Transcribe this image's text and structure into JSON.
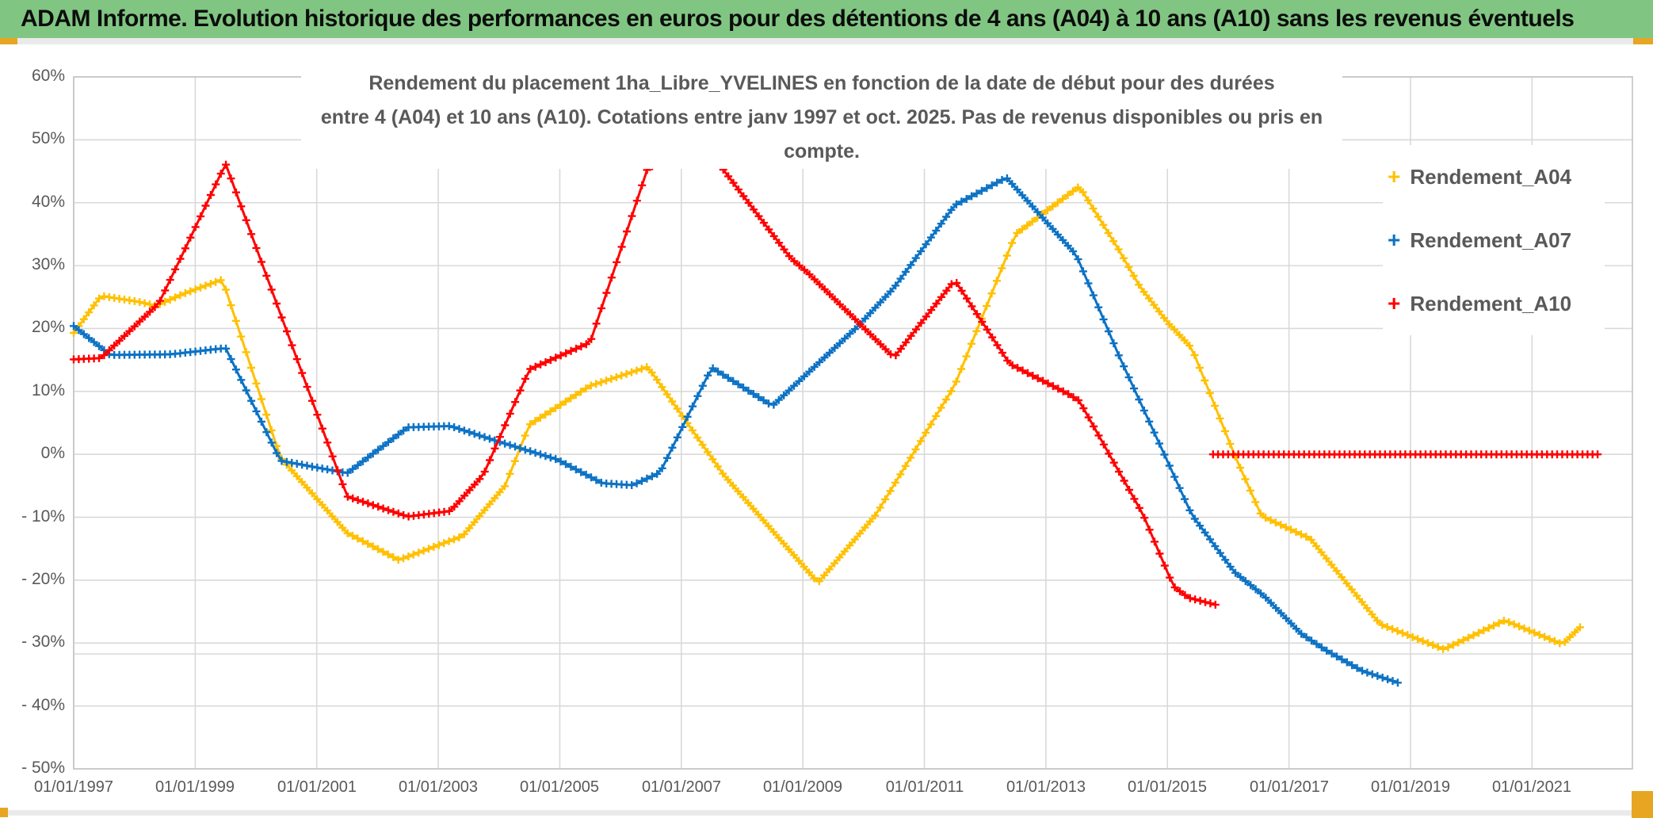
{
  "banner": {
    "title": "ADAM Informe. Evolution historique des performances en euros pour des détentions de 4 ans (A04) à 10 ans (A10) sans les revenus éventuels",
    "bg_color": "#80C682",
    "accent_color": "#E6A622"
  },
  "chart_data": {
    "type": "line",
    "title_line1": "Rendement du placement 1ha_Libre_YVELINES en fonction de la date de début pour des durées",
    "title_line2": "entre 4 (A04) et 10 ans (A10). Cotations entre janv 1997 et oct. 2025. Pas de revenus disponibles ou pris en compte.",
    "marker_style": "plus",
    "grid": "on",
    "x_axis": {
      "type": "date",
      "tick_labels": [
        "01/01/1997",
        "01/01/1999",
        "01/01/2001",
        "01/01/2003",
        "01/01/2005",
        "01/01/2007",
        "01/01/2009",
        "01/01/2011",
        "01/01/2013",
        "01/01/2015",
        "01/01/2017",
        "01/01/2019",
        "01/01/2021"
      ],
      "tick_years": [
        1997,
        1999,
        2001,
        2003,
        2005,
        2007,
        2009,
        2011,
        2013,
        2015,
        2017,
        2019,
        2021
      ]
    },
    "y_axis": {
      "unit": "%",
      "min": -50,
      "max": 60,
      "step": 10,
      "tick_labels": [
        "60%",
        "50%",
        "40%",
        "30%",
        "20%",
        "10%",
        "0%",
        "- 10%",
        "- 20%",
        "- 30%",
        "- 40%",
        "- 50%"
      ]
    },
    "legend": {
      "position": "right",
      "items": [
        {
          "label": "Rendement_A04",
          "color": "#FFC000"
        },
        {
          "label": "Rendement_A07",
          "color": "#0C72C4"
        },
        {
          "label": "Rendement_A10",
          "color": "#FF0000"
        }
      ]
    },
    "series": [
      {
        "name": "Rendement_A04",
        "color": "#FFC000",
        "points": [
          [
            1997.0,
            19.3
          ],
          [
            1997.45,
            25.2
          ],
          [
            1998.1,
            24.2
          ],
          [
            1998.35,
            23.6
          ],
          [
            1998.8,
            25.5
          ],
          [
            1999.45,
            27.8
          ],
          [
            2000.4,
            -0.5
          ],
          [
            2001.5,
            -12.5
          ],
          [
            2002.35,
            -16.8
          ],
          [
            2003.4,
            -13.0
          ],
          [
            2004.1,
            -5.0
          ],
          [
            2004.5,
            4.7
          ],
          [
            2005.5,
            10.9
          ],
          [
            2006.45,
            13.9
          ],
          [
            2007.7,
            -3.3
          ],
          [
            2009.25,
            -20.4
          ],
          [
            2010.2,
            -9.6
          ],
          [
            2011.5,
            11.0
          ],
          [
            2012.5,
            35.0
          ],
          [
            2013.55,
            42.6
          ],
          [
            2014.2,
            32.5
          ],
          [
            2014.55,
            26.6
          ],
          [
            2015.0,
            21.0
          ],
          [
            2015.4,
            16.9
          ],
          [
            2016.1,
            0.0
          ],
          [
            2016.55,
            -9.8
          ],
          [
            2017.35,
            -13.4
          ],
          [
            2018.5,
            -27.0
          ],
          [
            2019.55,
            -31.0
          ],
          [
            2020.55,
            -26.4
          ],
          [
            2021.5,
            -30.2
          ],
          [
            2021.79,
            -27.5
          ]
        ]
      },
      {
        "name": "Rendement_A07",
        "color": "#0C72C4",
        "points": [
          [
            1997.0,
            20.4
          ],
          [
            1997.6,
            15.8
          ],
          [
            1998.6,
            15.9
          ],
          [
            1999.5,
            16.9
          ],
          [
            2000.4,
            -1.0
          ],
          [
            2001.5,
            -3.0
          ],
          [
            2002.5,
            4.3
          ],
          [
            2003.2,
            4.5
          ],
          [
            2004.0,
            2.0
          ],
          [
            2004.95,
            -0.8
          ],
          [
            2005.7,
            -4.6
          ],
          [
            2006.2,
            -4.9
          ],
          [
            2006.65,
            -2.9
          ],
          [
            2007.5,
            13.8
          ],
          [
            2008.5,
            7.7
          ],
          [
            2009.9,
            20.3
          ],
          [
            2010.5,
            26.5
          ],
          [
            2011.5,
            39.6
          ],
          [
            2012.35,
            44.0
          ],
          [
            2013.5,
            31.7
          ],
          [
            2014.2,
            15.7
          ],
          [
            2015.0,
            -1.1
          ],
          [
            2015.4,
            -9.6
          ],
          [
            2016.1,
            -18.7
          ],
          [
            2016.6,
            -22.6
          ],
          [
            2017.2,
            -28.5
          ],
          [
            2017.6,
            -31.1
          ],
          [
            2018.2,
            -34.4
          ],
          [
            2018.79,
            -36.3
          ]
        ]
      },
      {
        "name": "Rendement_A10",
        "color": "#FF0000",
        "points": [
          [
            1997.0,
            15.1
          ],
          [
            1997.45,
            15.3
          ],
          [
            1998.4,
            24.0
          ],
          [
            1998.8,
            32.0
          ],
          [
            1999.5,
            46.2
          ],
          [
            2001.5,
            -6.7
          ],
          [
            2002.5,
            -9.9
          ],
          [
            2003.2,
            -9.0
          ],
          [
            2003.74,
            -3.3
          ],
          [
            2004.5,
            13.5
          ],
          [
            2005.5,
            17.8
          ],
          [
            2006.45,
            45.6
          ],
          [
            2007.45,
            48.3
          ],
          [
            2008.8,
            31.2
          ],
          [
            2009.1,
            28.7
          ],
          [
            2010.5,
            15.4
          ],
          [
            2011.5,
            27.7
          ],
          [
            2012.4,
            14.4
          ],
          [
            2013.35,
            9.7
          ],
          [
            2013.55,
            8.5
          ],
          [
            2014.6,
            -9.6
          ],
          [
            2015.1,
            -21.0
          ],
          [
            2015.35,
            -22.8
          ],
          [
            2015.79,
            -23.9
          ]
        ],
        "zero_segment": [
          [
            2015.75,
            0.0
          ],
          [
            2022.08,
            0.0
          ]
        ]
      }
    ]
  }
}
